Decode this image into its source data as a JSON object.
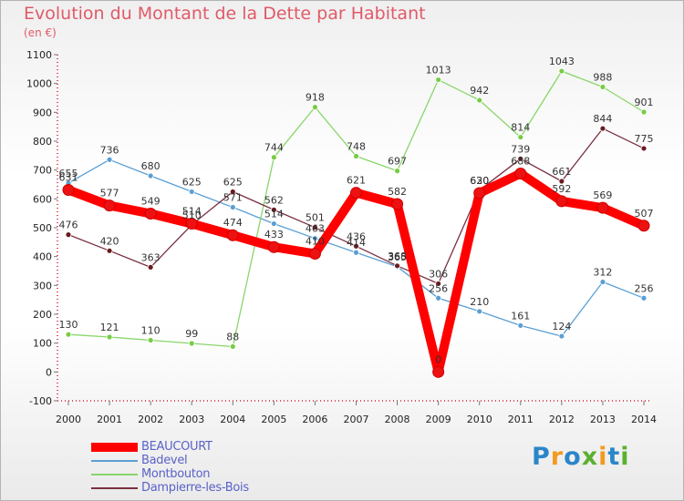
{
  "title": "Evolution du Montant de la Dette par Habitant",
  "subtitle": "(en €)",
  "logo": "Proxiti",
  "chart_data": {
    "type": "line",
    "title": "Evolution du Montant de la Dette par Habitant",
    "ylabel": "(en €)",
    "xlabel": "",
    "x": [
      "2000",
      "2001",
      "2002",
      "2003",
      "2004",
      "2005",
      "2006",
      "2007",
      "2008",
      "2009",
      "2010",
      "2011",
      "2012",
      "2013",
      "2014"
    ],
    "ylim": [
      -100,
      1100
    ],
    "yticks": [
      -100,
      0,
      100,
      200,
      300,
      400,
      500,
      600,
      700,
      800,
      900,
      1000,
      1100
    ],
    "grid": false,
    "legend_position": "bottom-left",
    "series": [
      {
        "name": "BEAUCOURT",
        "color": "#ff0000",
        "marker_color": "#ee1111",
        "values": [
          631,
          577,
          549,
          514,
          474,
          433,
          410,
          621,
          582,
          0,
          620,
          688,
          592,
          569,
          507
        ]
      },
      {
        "name": "Badevel",
        "color": "#5a9fd4",
        "marker_color": "#5a9fd4",
        "values": [
          655,
          736,
          680,
          625,
          571,
          514,
          463,
          414,
          365,
          256,
          210,
          161,
          124,
          312,
          256
        ]
      },
      {
        "name": "Montbouton",
        "color": "#88d66a",
        "marker_color": "#77cc44",
        "values": [
          130,
          121,
          110,
          99,
          88,
          744,
          918,
          748,
          697,
          1013,
          942,
          814,
          1043,
          988,
          901
        ]
      },
      {
        "name": "Dampierre-les-Bois",
        "color": "#7a3040",
        "marker_color": "#6a1a20",
        "values": [
          476,
          420,
          363,
          510,
          625,
          562,
          501,
          436,
          368,
          306,
          630,
          739,
          661,
          844,
          775
        ]
      }
    ]
  }
}
